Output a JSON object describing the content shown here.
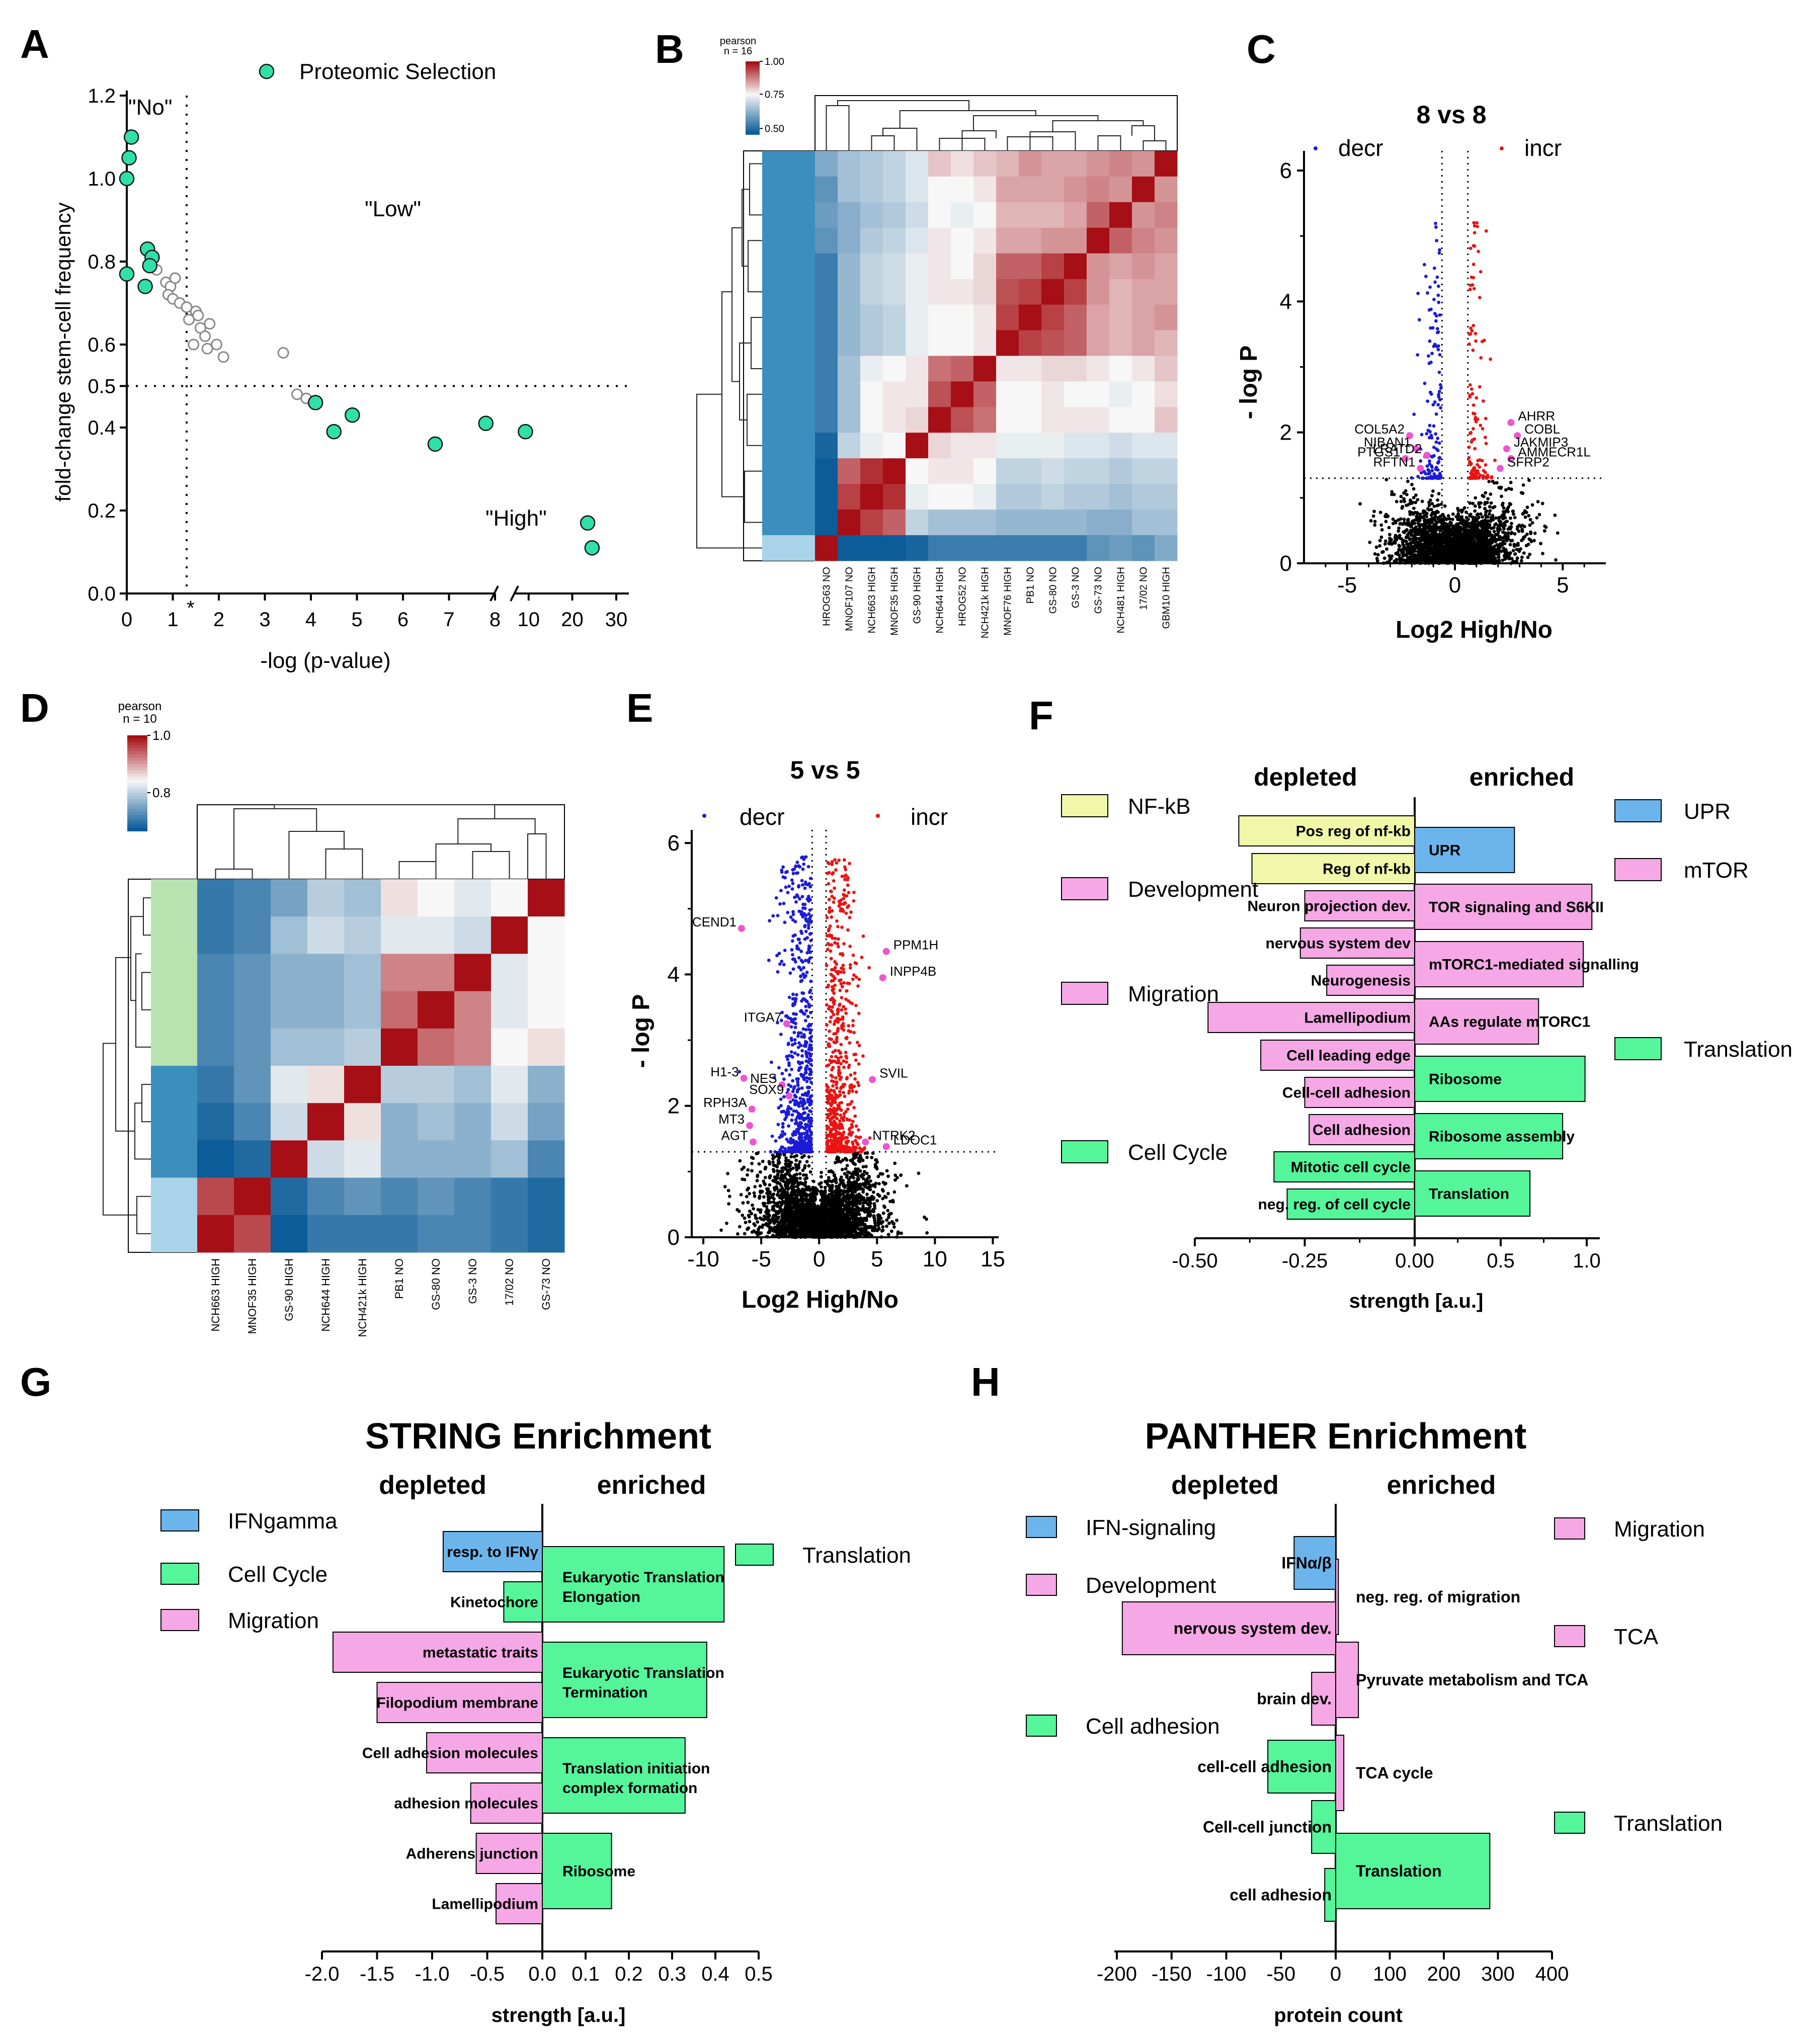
{
  "panel_letters": [
    "A",
    "B",
    "C",
    "D",
    "E",
    "F",
    "G",
    "H"
  ],
  "colors": {
    "sel": "#2fe0a8",
    "selStroke": "#111111",
    "grey": "#b5b5b5",
    "blue": "#1b1bd6",
    "red": "#e81414",
    "pink": "#ee55d0",
    "nfkb": "#f0f7a8",
    "devBlue": "#6bb5ec",
    "mig": "#f5a8e5",
    "green": "#55f59a",
    "heatRed": "#a50f15",
    "heatMid": "#f7f7f7",
    "heatBlue": "#0b5c99",
    "clusterBlue": "#3c8fbc",
    "clusterLight": "#a9d3e8",
    "clusterGreen": "#b8e3b0"
  },
  "chart_data": [
    {
      "panel": "A",
      "type": "scatter",
      "legend": "Proteomic Selection",
      "xlabel": "-log (p-value)",
      "ylabel": "fold-change stem-cell frequency",
      "x_ticks": [
        "0",
        "1",
        "*",
        "2",
        "3",
        "4",
        "5",
        "6",
        "7",
        "8",
        "10",
        "20",
        "30"
      ],
      "y_ticks": [
        "0.0",
        "0.2",
        "0.4",
        "0.5",
        "0.6",
        "0.8",
        "1.0",
        "1.2"
      ],
      "region_labels": [
        "\"No\"",
        "\"Low\"",
        "\"High\""
      ],
      "threshold_x": 1.3,
      "threshold_y": 0.5,
      "selected_points": [
        [
          0.1,
          1.1
        ],
        [
          0.05,
          1.05
        ],
        [
          0.0,
          1.0
        ],
        [
          0.0,
          0.77
        ],
        [
          0.45,
          0.83
        ],
        [
          0.55,
          0.81
        ],
        [
          0.5,
          0.79
        ],
        [
          0.4,
          0.74
        ],
        [
          4.1,
          0.46
        ],
        [
          4.5,
          0.39
        ],
        [
          4.9,
          0.43
        ],
        [
          6.7,
          0.36
        ],
        [
          7.8,
          0.41
        ],
        [
          9.6,
          0.39
        ],
        [
          23.5,
          0.17
        ],
        [
          24.5,
          0.11
        ]
      ],
      "other_points": [
        [
          0.65,
          0.78
        ],
        [
          0.85,
          0.75
        ],
        [
          0.95,
          0.74
        ],
        [
          1.05,
          0.76
        ],
        [
          0.9,
          0.72
        ],
        [
          1.0,
          0.71
        ],
        [
          1.15,
          0.7
        ],
        [
          1.3,
          0.69
        ],
        [
          1.35,
          0.66
        ],
        [
          1.5,
          0.68
        ],
        [
          1.6,
          0.64
        ],
        [
          1.7,
          0.62
        ],
        [
          1.45,
          0.6
        ],
        [
          1.75,
          0.59
        ],
        [
          1.95,
          0.6
        ],
        [
          2.1,
          0.57
        ],
        [
          1.55,
          0.67
        ],
        [
          1.8,
          0.65
        ],
        [
          3.4,
          0.58
        ],
        [
          3.7,
          0.48
        ],
        [
          3.9,
          0.47
        ]
      ]
    },
    {
      "panel": "B",
      "type": "heatmap",
      "legend_title": "pearson",
      "legend_n": "n = 16",
      "scale_ticks": [
        "1.00",
        "0.75",
        "0.50"
      ],
      "columns": [
        "HROG63 NO",
        "MNOF107 NO",
        "NCH663 HIGH",
        "MNOF35 HIGH",
        "GS-90 HIGH",
        "NCH644 HIGH",
        "HROG52 NO",
        "NCH421k HIGH",
        "MNOF76 HIGH",
        "PB1 NO",
        "GS-80 NO",
        "GS-3 NO",
        "GS-73 NO",
        "NCH481 HIGH",
        "17/02 NO",
        "GBM10 HIGH"
      ],
      "row_values": [
        [
          0.55,
          0.6,
          0.62,
          0.64,
          0.68,
          0.78,
          0.75,
          0.78,
          0.8,
          0.84,
          0.82,
          0.82,
          0.84,
          0.86,
          0.84,
          1.0
        ],
        [
          0.5,
          0.6,
          0.62,
          0.64,
          0.68,
          0.72,
          0.72,
          0.74,
          0.82,
          0.82,
          0.82,
          0.84,
          0.86,
          0.84,
          1.0,
          0.84
        ],
        [
          0.52,
          0.56,
          0.6,
          0.62,
          0.66,
          0.72,
          0.7,
          0.72,
          0.8,
          0.8,
          0.8,
          0.82,
          0.9,
          1.0,
          0.84,
          0.86
        ],
        [
          0.5,
          0.56,
          0.62,
          0.64,
          0.68,
          0.74,
          0.72,
          0.74,
          0.82,
          0.82,
          0.84,
          0.84,
          1.0,
          0.9,
          0.86,
          0.84
        ],
        [
          0.45,
          0.58,
          0.64,
          0.66,
          0.7,
          0.74,
          0.72,
          0.76,
          0.9,
          0.9,
          0.94,
          1.0,
          0.84,
          0.82,
          0.84,
          0.82
        ],
        [
          0.45,
          0.58,
          0.64,
          0.66,
          0.7,
          0.74,
          0.74,
          0.76,
          0.92,
          0.94,
          1.0,
          0.94,
          0.84,
          0.8,
          0.82,
          0.82
        ],
        [
          0.45,
          0.58,
          0.62,
          0.64,
          0.7,
          0.72,
          0.72,
          0.74,
          0.94,
          1.0,
          0.94,
          0.9,
          0.82,
          0.8,
          0.82,
          0.84
        ],
        [
          0.45,
          0.58,
          0.62,
          0.64,
          0.7,
          0.72,
          0.72,
          0.74,
          1.0,
          0.94,
          0.92,
          0.9,
          0.82,
          0.8,
          0.82,
          0.8
        ],
        [
          0.45,
          0.6,
          0.7,
          0.72,
          0.74,
          0.88,
          0.9,
          1.0,
          0.74,
          0.74,
          0.76,
          0.76,
          0.74,
          0.72,
          0.74,
          0.78
        ],
        [
          0.45,
          0.6,
          0.72,
          0.74,
          0.74,
          0.92,
          1.0,
          0.9,
          0.72,
          0.72,
          0.74,
          0.72,
          0.72,
          0.7,
          0.72,
          0.75
        ],
        [
          0.45,
          0.6,
          0.72,
          0.74,
          0.76,
          1.0,
          0.92,
          0.88,
          0.72,
          0.72,
          0.74,
          0.74,
          0.74,
          0.72,
          0.72,
          0.78
        ],
        [
          0.4,
          0.64,
          0.7,
          0.72,
          1.0,
          0.76,
          0.74,
          0.74,
          0.7,
          0.7,
          0.7,
          0.68,
          0.68,
          0.66,
          0.68,
          0.68
        ],
        [
          0.38,
          0.9,
          0.96,
          1.0,
          0.72,
          0.74,
          0.74,
          0.72,
          0.64,
          0.64,
          0.66,
          0.64,
          0.64,
          0.62,
          0.64,
          0.64
        ],
        [
          0.38,
          0.94,
          1.0,
          0.96,
          0.7,
          0.72,
          0.72,
          0.7,
          0.62,
          0.62,
          0.64,
          0.62,
          0.62,
          0.6,
          0.62,
          0.62
        ],
        [
          0.38,
          1.0,
          0.94,
          0.9,
          0.64,
          0.6,
          0.6,
          0.6,
          0.58,
          0.58,
          0.58,
          0.58,
          0.56,
          0.56,
          0.6,
          0.6
        ],
        [
          1.0,
          0.38,
          0.38,
          0.38,
          0.4,
          0.45,
          0.45,
          0.45,
          0.45,
          0.45,
          0.45,
          0.45,
          0.5,
          0.52,
          0.5,
          0.55
        ]
      ]
    },
    {
      "panel": "C",
      "type": "scatter",
      "title": "8 vs 8",
      "legend": [
        "decr",
        "incr"
      ],
      "xlabel": "Log2 High/No",
      "ylabel": "- log P",
      "x_ticks": [
        "-5",
        "0",
        "5"
      ],
      "y_ticks": [
        "0",
        "2",
        "4",
        "6"
      ],
      "xlim": [
        -7,
        7
      ],
      "ylim": [
        0,
        6.3
      ],
      "labels": [
        {
          "text": "COL5A2",
          "x": -2.1,
          "y": 1.95
        },
        {
          "text": "NIBAN1",
          "x": -1.8,
          "y": 1.75
        },
        {
          "text": "PTGS1",
          "x": -2.3,
          "y": 1.6
        },
        {
          "text": "LRATD2",
          "x": -1.3,
          "y": 1.65
        },
        {
          "text": "RFTN1",
          "x": -1.6,
          "y": 1.45
        },
        {
          "text": "AHRR",
          "x": 2.6,
          "y": 2.15
        },
        {
          "text": "COBL",
          "x": 2.9,
          "y": 1.95
        },
        {
          "text": "JAKMIP3",
          "x": 2.4,
          "y": 1.75
        },
        {
          "text": "AMMECR1L",
          "x": 2.6,
          "y": 1.6
        },
        {
          "text": "SFRP2",
          "x": 2.1,
          "y": 1.45
        }
      ]
    },
    {
      "panel": "D",
      "type": "heatmap",
      "legend_title": "pearson",
      "legend_n": "n = 10",
      "scale_ticks": [
        "1.0",
        "0.8"
      ],
      "columns": [
        "NCH663 HIGH",
        "MNOF35 HIGH",
        "GS-90 HIGH",
        "NCH644 HIGH",
        "NCH421k HIGH",
        "PB1 NO",
        "GS-80 NO",
        "GS-3 NO",
        "17/02 NO",
        "GS-73 NO"
      ],
      "row_values": [
        [
          0.62,
          0.64,
          0.68,
          0.74,
          0.72,
          0.82,
          0.8,
          0.78,
          0.8,
          1.0
        ],
        [
          0.62,
          0.64,
          0.72,
          0.76,
          0.74,
          0.78,
          0.78,
          0.76,
          1.0,
          0.8
        ],
        [
          0.64,
          0.66,
          0.7,
          0.7,
          0.72,
          0.9,
          0.9,
          1.0,
          0.78,
          0.8
        ],
        [
          0.64,
          0.66,
          0.7,
          0.7,
          0.72,
          0.92,
          1.0,
          0.9,
          0.78,
          0.8
        ],
        [
          0.64,
          0.66,
          0.72,
          0.72,
          0.74,
          1.0,
          0.92,
          0.9,
          0.8,
          0.82
        ],
        [
          0.62,
          0.66,
          0.78,
          0.82,
          1.0,
          0.74,
          0.74,
          0.72,
          0.78,
          0.7
        ],
        [
          0.6,
          0.64,
          0.76,
          1.0,
          0.82,
          0.7,
          0.72,
          0.7,
          0.76,
          0.68
        ],
        [
          0.58,
          0.6,
          1.0,
          0.76,
          0.78,
          0.7,
          0.7,
          0.7,
          0.72,
          0.64
        ],
        [
          0.95,
          1.0,
          0.6,
          0.64,
          0.66,
          0.64,
          0.66,
          0.64,
          0.62,
          0.6
        ],
        [
          1.0,
          0.95,
          0.58,
          0.62,
          0.62,
          0.62,
          0.64,
          0.64,
          0.62,
          0.6
        ]
      ]
    },
    {
      "panel": "E",
      "type": "scatter",
      "title": "5 vs 5",
      "legend": [
        "decr",
        "incr"
      ],
      "xlabel": "Log2 High/No",
      "ylabel": "- log P",
      "x_ticks": [
        "-10",
        "-5",
        "0",
        "5",
        "10",
        "15"
      ],
      "y_ticks": [
        "0",
        "2",
        "4",
        "6"
      ],
      "xlim": [
        -11,
        15.5
      ],
      "ylim": [
        0,
        6.2
      ],
      "labels": [
        {
          "text": "CEND1",
          "x": -6.7,
          "y": 4.7
        },
        {
          "text": "PPM1H",
          "x": 5.8,
          "y": 4.35
        },
        {
          "text": "INPP4B",
          "x": 5.5,
          "y": 3.95
        },
        {
          "text": "ITGA7",
          "x": -2.8,
          "y": 3.25
        },
        {
          "text": "SVIL",
          "x": 4.6,
          "y": 2.4
        },
        {
          "text": "H1-3",
          "x": -6.5,
          "y": 2.42
        },
        {
          "text": "NES",
          "x": -3.2,
          "y": 2.32
        },
        {
          "text": "SOX9",
          "x": -2.6,
          "y": 2.15
        },
        {
          "text": "RPH3A",
          "x": -5.8,
          "y": 1.95
        },
        {
          "text": "MT3",
          "x": -6.0,
          "y": 1.7
        },
        {
          "text": "NTRK2",
          "x": 4.0,
          "y": 1.45
        },
        {
          "text": "AGT",
          "x": -5.7,
          "y": 1.45
        },
        {
          "text": "LDOC1",
          "x": 5.8,
          "y": 1.38
        }
      ]
    },
    {
      "panel": "F",
      "type": "bar",
      "orientation": "horizontal",
      "header_left": "depleted",
      "header_right": "enriched",
      "xlabel": "strength [a.u.]",
      "x_ticks": [
        "-0.50",
        "-0.25",
        "0.00",
        "0.5",
        "1.0"
      ],
      "legend": [
        "NF-kB",
        "Development",
        "Migration",
        "Cell Cycle",
        "UPR",
        "mTOR",
        "Translation"
      ],
      "depleted": [
        {
          "label": "Pos reg of nf-kb",
          "value": -0.4,
          "group": "NF-kB"
        },
        {
          "label": "Reg of nf-kb",
          "value": -0.37,
          "group": "NF-kB"
        },
        {
          "label": "Neuron projection dev.",
          "value": -0.25,
          "group": "Development"
        },
        {
          "label": "nervous system dev",
          "value": -0.26,
          "group": "Development"
        },
        {
          "label": "Neurogenesis",
          "value": -0.2,
          "group": "Development"
        },
        {
          "label": "Lamellipodium",
          "value": -0.47,
          "group": "Migration"
        },
        {
          "label": "Cell leading edge",
          "value": -0.35,
          "group": "Migration"
        },
        {
          "label": "Cell-cell adhesion",
          "value": -0.25,
          "group": "Migration"
        },
        {
          "label": "Cell adhesion",
          "value": -0.24,
          "group": "Migration"
        },
        {
          "label": "Mitotic cell cycle",
          "value": -0.32,
          "group": "Cell Cycle"
        },
        {
          "label": "neg. reg. of cell cycle",
          "value": -0.29,
          "group": "Cell Cycle"
        }
      ],
      "enriched": [
        {
          "label": "UPR",
          "value": 0.58,
          "group": "UPR"
        },
        {
          "label": "TOR signaling and S6KII",
          "value": 1.03,
          "group": "mTOR"
        },
        {
          "label": "mTORC1-mediated signalling",
          "value": 0.98,
          "group": "mTOR"
        },
        {
          "label": "AAs regulate mTORC1",
          "value": 0.72,
          "group": "mTOR"
        },
        {
          "label": "Ribosome",
          "value": 0.99,
          "group": "Translation"
        },
        {
          "label": "Ribosome assembly",
          "value": 0.86,
          "group": "Translation"
        },
        {
          "label": "Translation",
          "value": 0.67,
          "group": "Translation"
        }
      ]
    },
    {
      "panel": "G",
      "type": "bar",
      "orientation": "horizontal",
      "title": "STRING Enrichment",
      "header_left": "depleted",
      "header_right": "enriched",
      "xlabel": "strength [a.u.]",
      "x_ticks": [
        "-2.0",
        "-1.5",
        "-1.0",
        "-0.5",
        "0.0",
        "0.1",
        "0.2",
        "0.3",
        "0.4",
        "0.5"
      ],
      "legend": [
        "IFNgamma",
        "Cell Cycle",
        "Migration",
        "Translation"
      ],
      "depleted": [
        {
          "label": "resp. to IFNγ",
          "value": -0.9,
          "group": "IFNgamma"
        },
        {
          "label": "Kinetochore",
          "value": -0.35,
          "group": "Cell Cycle"
        },
        {
          "label": "metastatic traits",
          "value": -1.9,
          "group": "Migration"
        },
        {
          "label": "Filopodium membrane",
          "value": -1.5,
          "group": "Migration"
        },
        {
          "label": "Cell adhesion molecules",
          "value": -1.05,
          "group": "Migration"
        },
        {
          "label": "adhesion molecules",
          "value": -0.65,
          "group": "Migration"
        },
        {
          "label": "Adherens junction",
          "value": -0.6,
          "group": "Migration"
        },
        {
          "label": "Lamellipodium",
          "value": -0.42,
          "group": "Migration"
        }
      ],
      "enriched": [
        {
          "label": "Eukaryotic Translation Elongation",
          "value": 0.42,
          "group": "Translation"
        },
        {
          "label": "Eukaryotic Translation Termination",
          "value": 0.38,
          "group": "Translation"
        },
        {
          "label": "Translation initiation complex formation",
          "value": 0.33,
          "group": "Translation"
        },
        {
          "label": "Ribosome",
          "value": 0.16,
          "group": "Translation"
        }
      ]
    },
    {
      "panel": "H",
      "type": "bar",
      "orientation": "horizontal",
      "title": "PANTHER  Enrichment",
      "header_left": "depleted",
      "header_right": "enriched",
      "xlabel": "protein count",
      "x_ticks": [
        "-200",
        "-150",
        "-100",
        "-50",
        "0",
        "100",
        "200",
        "300",
        "400"
      ],
      "legend": [
        "IFN-signaling",
        "Development",
        "Cell adhesion",
        "Migration",
        "TCA",
        "Translation"
      ],
      "depleted": [
        {
          "label": "IFNα/β",
          "value": -38,
          "group": "IFN-signaling"
        },
        {
          "label": "nervous system dev.",
          "value": -195,
          "group": "Development"
        },
        {
          "label": "brain dev.",
          "value": -22,
          "group": "Development"
        },
        {
          "label": "cell-cell adhesion",
          "value": -62,
          "group": "Cell adhesion"
        },
        {
          "label": "Cell-cell junction",
          "value": -22,
          "group": "Cell adhesion"
        },
        {
          "label": "cell adhesion",
          "value": -10,
          "group": "Cell adhesion"
        }
      ],
      "enriched": [
        {
          "label": "neg. reg. of migration",
          "value": 5,
          "group": "Migration"
        },
        {
          "label": "Pyruvate metabolism and TCA",
          "value": 42,
          "group": "TCA"
        },
        {
          "label": "TCA cycle",
          "value": 15,
          "group": "TCA"
        },
        {
          "label": "Translation",
          "value": 285,
          "group": "Translation"
        }
      ]
    }
  ]
}
